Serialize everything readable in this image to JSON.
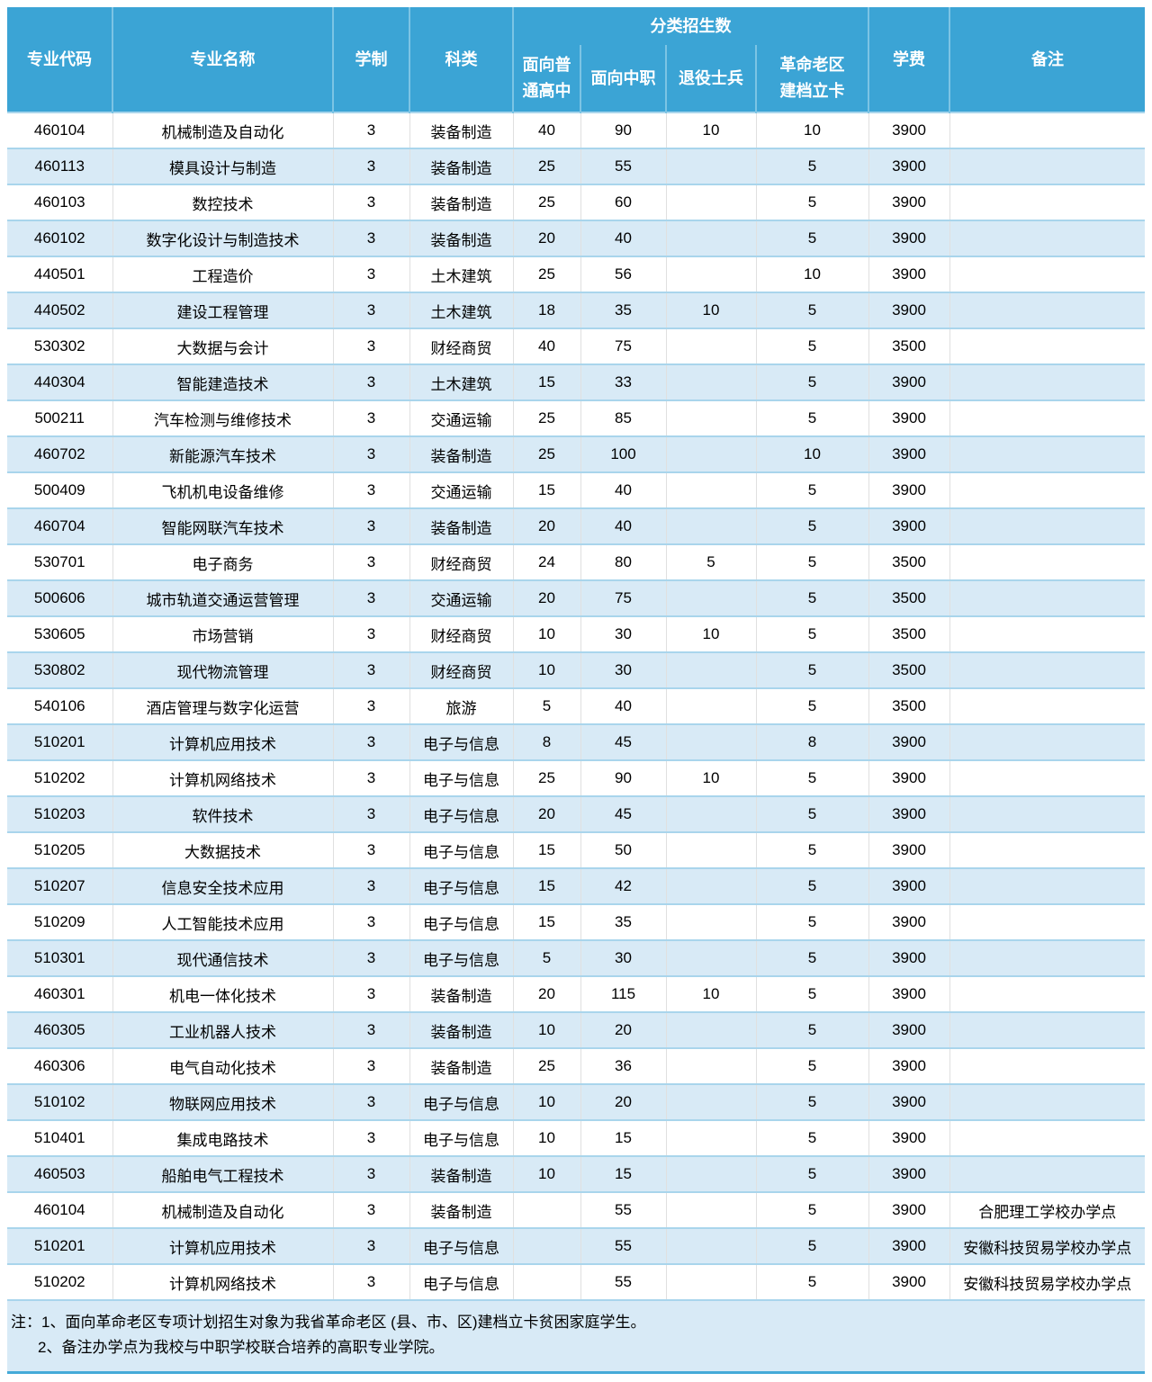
{
  "table": {
    "header": {
      "code": "专业代码",
      "name": "专业名称",
      "years": "学制",
      "category": "科类",
      "group": "分类招生数",
      "gaozhong": "面向普通高中",
      "zhongzhi": "面向中职",
      "tuiyi": "退役士兵",
      "laoqu": "革命老区建档立卡",
      "tuition": "学费",
      "remark": "备注"
    },
    "rows": [
      [
        "460104",
        "机械制造及自动化",
        "3",
        "装备制造",
        "40",
        "90",
        "10",
        "10",
        "3900",
        ""
      ],
      [
        "460113",
        "模具设计与制造",
        "3",
        "装备制造",
        "25",
        "55",
        "",
        "5",
        "3900",
        ""
      ],
      [
        "460103",
        "数控技术",
        "3",
        "装备制造",
        "25",
        "60",
        "",
        "5",
        "3900",
        ""
      ],
      [
        "460102",
        "数字化设计与制造技术",
        "3",
        "装备制造",
        "20",
        "40",
        "",
        "5",
        "3900",
        ""
      ],
      [
        "440501",
        "工程造价",
        "3",
        "土木建筑",
        "25",
        "56",
        "",
        "10",
        "3900",
        ""
      ],
      [
        "440502",
        "建设工程管理",
        "3",
        "土木建筑",
        "18",
        "35",
        "10",
        "5",
        "3900",
        ""
      ],
      [
        "530302",
        "大数据与会计",
        "3",
        "财经商贸",
        "40",
        "75",
        "",
        "5",
        "3500",
        ""
      ],
      [
        "440304",
        "智能建造技术",
        "3",
        "土木建筑",
        "15",
        "33",
        "",
        "5",
        "3900",
        ""
      ],
      [
        "500211",
        "汽车检测与维修技术",
        "3",
        "交通运输",
        "25",
        "85",
        "",
        "5",
        "3900",
        ""
      ],
      [
        "460702",
        "新能源汽车技术",
        "3",
        "装备制造",
        "25",
        "100",
        "",
        "10",
        "3900",
        ""
      ],
      [
        "500409",
        "飞机机电设备维修",
        "3",
        "交通运输",
        "15",
        "40",
        "",
        "5",
        "3900",
        ""
      ],
      [
        "460704",
        "智能网联汽车技术",
        "3",
        "装备制造",
        "20",
        "40",
        "",
        "5",
        "3900",
        ""
      ],
      [
        "530701",
        "电子商务",
        "3",
        "财经商贸",
        "24",
        "80",
        "5",
        "5",
        "3500",
        ""
      ],
      [
        "500606",
        "城市轨道交通运营管理",
        "3",
        "交通运输",
        "20",
        "75",
        "",
        "5",
        "3500",
        ""
      ],
      [
        "530605",
        "市场营销",
        "3",
        "财经商贸",
        "10",
        "30",
        "10",
        "5",
        "3500",
        ""
      ],
      [
        "530802",
        "现代物流管理",
        "3",
        "财经商贸",
        "10",
        "30",
        "",
        "5",
        "3500",
        ""
      ],
      [
        "540106",
        "酒店管理与数字化运营",
        "3",
        "旅游",
        "5",
        "40",
        "",
        "5",
        "3500",
        ""
      ],
      [
        "510201",
        "计算机应用技术",
        "3",
        "电子与信息",
        "8",
        "45",
        "",
        "8",
        "3900",
        ""
      ],
      [
        "510202",
        "计算机网络技术",
        "3",
        "电子与信息",
        "25",
        "90",
        "10",
        "5",
        "3900",
        ""
      ],
      [
        "510203",
        "软件技术",
        "3",
        "电子与信息",
        "20",
        "45",
        "",
        "5",
        "3900",
        ""
      ],
      [
        "510205",
        "大数据技术",
        "3",
        "电子与信息",
        "15",
        "50",
        "",
        "5",
        "3900",
        ""
      ],
      [
        "510207",
        "信息安全技术应用",
        "3",
        "电子与信息",
        "15",
        "42",
        "",
        "5",
        "3900",
        ""
      ],
      [
        "510209",
        "人工智能技术应用",
        "3",
        "电子与信息",
        "15",
        "35",
        "",
        "5",
        "3900",
        ""
      ],
      [
        "510301",
        "现代通信技术",
        "3",
        "电子与信息",
        "5",
        "30",
        "",
        "5",
        "3900",
        ""
      ],
      [
        "460301",
        "机电一体化技术",
        "3",
        "装备制造",
        "20",
        "115",
        "10",
        "5",
        "3900",
        ""
      ],
      [
        "460305",
        "工业机器人技术",
        "3",
        "装备制造",
        "10",
        "20",
        "",
        "5",
        "3900",
        ""
      ],
      [
        "460306",
        "电气自动化技术",
        "3",
        "装备制造",
        "25",
        "36",
        "",
        "5",
        "3900",
        ""
      ],
      [
        "510102",
        "物联网应用技术",
        "3",
        "电子与信息",
        "10",
        "20",
        "",
        "5",
        "3900",
        ""
      ],
      [
        "510401",
        "集成电路技术",
        "3",
        "电子与信息",
        "10",
        "15",
        "",
        "5",
        "3900",
        ""
      ],
      [
        "460503",
        "船舶电气工程技术",
        "3",
        "装备制造",
        "10",
        "15",
        "",
        "5",
        "3900",
        ""
      ],
      [
        "460104",
        "机械制造及自动化",
        "3",
        "装备制造",
        "",
        "55",
        "",
        "5",
        "3900",
        "合肥理工学校办学点"
      ],
      [
        "510201",
        "计算机应用技术",
        "3",
        "电子与信息",
        "",
        "55",
        "",
        "5",
        "3900",
        "安徽科技贸易学校办学点"
      ],
      [
        "510202",
        "计算机网络技术",
        "3",
        "电子与信息",
        "",
        "55",
        "",
        "5",
        "3900",
        "安徽科技贸易学校办学点"
      ]
    ],
    "colors": {
      "header_bg": "#3BA4D5",
      "header_text": "#FFFFFF",
      "header_divider": "#7CC4E4",
      "stripe_bg": "#D8EAF6",
      "row_border": "#A9D5EC",
      "column_border": "#E0E0E0",
      "notes_bg": "#D8EAF6",
      "bottom_border": "#45AAD8"
    }
  },
  "notes": {
    "line1": "注：1、面向革命老区专项计划招生对象为我省革命老区 (县、市、区)建档立卡贫困家庭学生。",
    "line2": "2、备注办学点为我校与中职学校联合培养的高职专业学院。"
  }
}
